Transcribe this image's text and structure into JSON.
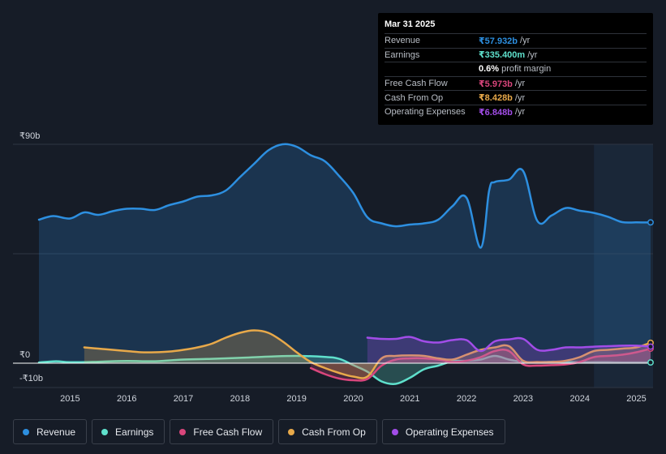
{
  "tooltip": {
    "date": "Mar 31 2025",
    "rows": [
      {
        "label": "Revenue",
        "value": "₹57.932b",
        "unit": "/yr",
        "color": "#2d8fe0"
      },
      {
        "label": "Earnings",
        "value": "₹335.400m",
        "unit": "/yr",
        "color": "#5fe0cc"
      },
      {
        "label": "",
        "value": "0.6%",
        "unit": "profit margin",
        "color": "#ffffff"
      },
      {
        "label": "Free Cash Flow",
        "value": "₹5.973b",
        "unit": "/yr",
        "color": "#d9467c"
      },
      {
        "label": "Cash From Op",
        "value": "₹8.428b",
        "unit": "/yr",
        "color": "#e8a94a"
      },
      {
        "label": "Operating Expenses",
        "value": "₹6.848b",
        "unit": "/yr",
        "color": "#a24de8"
      }
    ]
  },
  "legend": [
    {
      "label": "Revenue",
      "color": "#2d8fe0"
    },
    {
      "label": "Earnings",
      "color": "#5fe0cc"
    },
    {
      "label": "Free Cash Flow",
      "color": "#d9467c"
    },
    {
      "label": "Cash From Op",
      "color": "#e8a94a"
    },
    {
      "label": "Operating Expenses",
      "color": "#a24de8"
    }
  ],
  "chart_data": {
    "type": "area",
    "title": "",
    "unit": "₹b",
    "ylim": [
      -10,
      90
    ],
    "xlim": [
      2014.45,
      2025.25
    ],
    "y_tick_labels": [
      {
        "value": 90,
        "label": "₹90b"
      },
      {
        "value": 0,
        "label": "₹0"
      },
      {
        "value": -10,
        "label": "-₹10b"
      }
    ],
    "x_ticks": [
      2015,
      2016,
      2017,
      2018,
      2019,
      2020,
      2021,
      2022,
      2023,
      2024,
      2025
    ],
    "x_tick_labels": [
      "2015",
      "2016",
      "2017",
      "2018",
      "2019",
      "2020",
      "2021",
      "2022",
      "2023",
      "2024",
      "2025"
    ],
    "forecast_start": 2024.25,
    "series": [
      {
        "name": "Revenue",
        "color": "#2d8fe0",
        "fill": true,
        "x": [
          2014.45,
          2014.7,
          2015.0,
          2015.25,
          2015.5,
          2015.75,
          2016.0,
          2016.25,
          2016.5,
          2016.75,
          2017.0,
          2017.25,
          2017.5,
          2017.75,
          2018.0,
          2018.25,
          2018.5,
          2018.75,
          2019.0,
          2019.25,
          2019.5,
          2019.75,
          2020.0,
          2020.25,
          2020.5,
          2020.75,
          2021.0,
          2021.25,
          2021.5,
          2021.75,
          2022.0,
          2022.25,
          2022.4,
          2022.5,
          2022.75,
          2023.0,
          2023.25,
          2023.5,
          2023.75,
          2024.0,
          2024.25,
          2024.5,
          2024.75,
          2025.0,
          2025.25
        ],
        "values": [
          59,
          60.5,
          59.5,
          62,
          61,
          62.5,
          63.5,
          63.5,
          63,
          65,
          66.5,
          68.5,
          69,
          71,
          76.5,
          82,
          87.5,
          90,
          89,
          85.5,
          83,
          77,
          70,
          60,
          57.5,
          56.3,
          57,
          57.5,
          59,
          64.5,
          68,
          47.5,
          71,
          74.5,
          75.5,
          79,
          58.5,
          60.7,
          63.8,
          62.7,
          61.8,
          60.2,
          58,
          57.9,
          57.9
        ]
      },
      {
        "name": "Earnings",
        "color": "#5fe0cc",
        "fill": true,
        "x": [
          2014.45,
          2014.75,
          2015.0,
          2015.5,
          2016.0,
          2016.5,
          2017.0,
          2017.5,
          2018.0,
          2018.5,
          2019.0,
          2019.5,
          2019.75,
          2020.0,
          2020.25,
          2020.5,
          2020.75,
          2021.0,
          2021.25,
          2021.5,
          2021.75,
          2022.0,
          2022.25,
          2022.5,
          2022.75,
          2023.0,
          2023.25,
          2023.5,
          2023.75,
          2024.0,
          2024.25,
          2024.5,
          2024.75,
          2025.0,
          2025.25
        ],
        "values": [
          0.3,
          0.8,
          0.4,
          0.6,
          0.9,
          0.8,
          1.5,
          1.8,
          2.2,
          2.7,
          3.0,
          2.6,
          1.8,
          -0.8,
          -3.5,
          -7.5,
          -8.5,
          -6.0,
          -2.5,
          -1.0,
          0.8,
          1.0,
          1.5,
          3.0,
          1.5,
          0.5,
          0.4,
          0.6,
          0.5,
          0.4,
          0.4,
          0.4,
          0.3,
          0.3,
          0.3
        ]
      },
      {
        "name": "Free Cash Flow",
        "color": "#d9467c",
        "fill": true,
        "x": [
          2019.25,
          2019.5,
          2019.75,
          2020.0,
          2020.25,
          2020.5,
          2020.75,
          2021.0,
          2021.25,
          2021.5,
          2021.75,
          2022.0,
          2022.25,
          2022.5,
          2022.75,
          2023.0,
          2023.25,
          2023.5,
          2023.75,
          2024.0,
          2024.25,
          2024.5,
          2024.75,
          2025.0,
          2025.25
        ],
        "values": [
          -2.0,
          -4.5,
          -6.3,
          -7.0,
          -6.5,
          -1.0,
          1.5,
          2.0,
          2.0,
          1.5,
          0.5,
          1.0,
          2.5,
          5.0,
          5.0,
          -0.5,
          -1.0,
          -0.8,
          -0.5,
          0.5,
          2.5,
          3.0,
          3.5,
          4.5,
          6.0
        ]
      },
      {
        "name": "Cash From Op",
        "color": "#e8a94a",
        "fill": true,
        "x": [
          2015.25,
          2015.5,
          2015.75,
          2016.0,
          2016.25,
          2016.5,
          2016.75,
          2017.0,
          2017.25,
          2017.5,
          2017.75,
          2018.0,
          2018.25,
          2018.5,
          2018.75,
          2019.0,
          2019.25,
          2019.5,
          2019.75,
          2020.0,
          2020.25,
          2020.5,
          2020.75,
          2021.0,
          2021.25,
          2021.5,
          2021.75,
          2022.0,
          2022.25,
          2022.5,
          2022.75,
          2023.0,
          2023.25,
          2023.5,
          2023.75,
          2024.0,
          2024.25,
          2024.5,
          2024.75,
          2025.0,
          2025.25
        ],
        "values": [
          6.5,
          6.0,
          5.5,
          5.0,
          4.5,
          4.5,
          4.8,
          5.5,
          6.5,
          8.0,
          10.5,
          12.5,
          13.5,
          12.5,
          9.0,
          4.5,
          0.5,
          -2.0,
          -4.0,
          -5.5,
          -5.5,
          2.0,
          3.0,
          3.2,
          3.0,
          2.0,
          1.5,
          3.5,
          5.5,
          6.5,
          7.0,
          1.0,
          0.5,
          0.5,
          1.0,
          2.5,
          5.0,
          5.5,
          6.0,
          6.5,
          8.4
        ]
      },
      {
        "name": "Operating Expenses",
        "color": "#a24de8",
        "fill": true,
        "x": [
          2020.25,
          2020.5,
          2020.75,
          2021.0,
          2021.25,
          2021.5,
          2021.75,
          2022.0,
          2022.25,
          2022.5,
          2022.75,
          2023.0,
          2023.25,
          2023.5,
          2023.75,
          2024.0,
          2024.25,
          2024.5,
          2024.75,
          2025.0,
          2025.25
        ],
        "values": [
          10.5,
          10.0,
          10.0,
          10.8,
          9.0,
          8.5,
          9.5,
          9.5,
          5.0,
          9.0,
          9.8,
          10.0,
          5.5,
          5.5,
          6.5,
          6.5,
          6.8,
          7.0,
          7.2,
          7.2,
          6.8
        ]
      }
    ]
  }
}
